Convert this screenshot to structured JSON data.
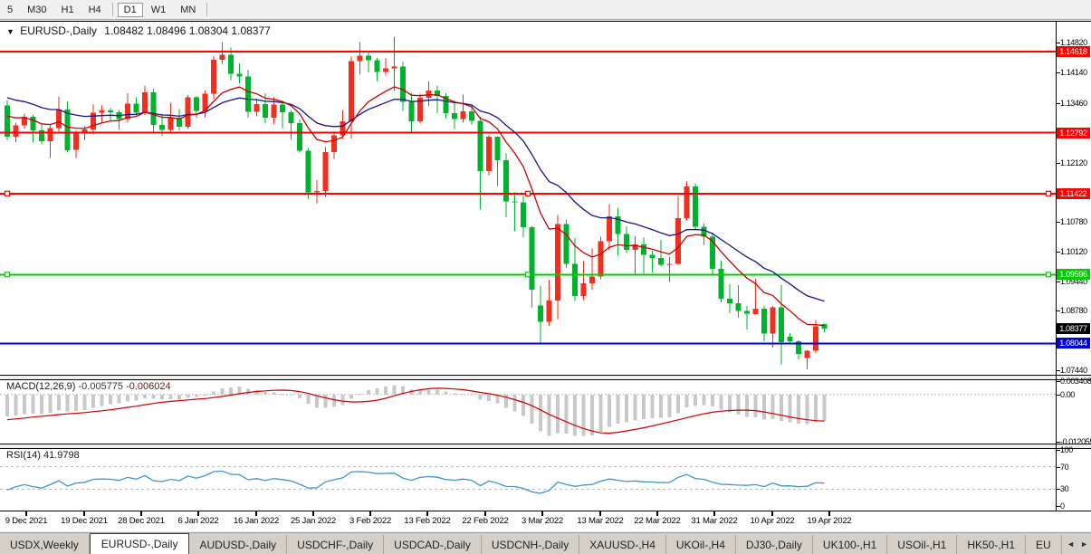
{
  "toolbar": {
    "buttons": [
      "5",
      "M30",
      "H1",
      "H4",
      "D1",
      "W1",
      "MN"
    ],
    "active": "D1"
  },
  "chart": {
    "title": {
      "marker": "▼",
      "symbol": "EURUSD-,Daily",
      "ohlc": "1.08482 1.08496 1.08304 1.08377"
    }
  },
  "chart_data": {
    "type": "candlestick",
    "symbol": "EURUSD-",
    "timeframe": "Daily",
    "last_ohlc": {
      "open": "1.08482",
      "high": "1.08496",
      "low": "1.08304",
      "close": "1.08377"
    },
    "colors": {
      "up_candle": "#f22e1e",
      "down_candle": "#00b22d",
      "hline_red": "#ff0000",
      "hline_green": "#00cc00",
      "hline_blue": "#0000dd",
      "current_tag": "#000000",
      "ma_fast": "#cc0000",
      "ma_slow": "#16168c",
      "macd_hist": "#c8c8c8",
      "macd_signal": "#cc0000",
      "rsi_line": "#3c96d2"
    },
    "price_axis": {
      "ticks": [
        "1.14820",
        "1.14140",
        "1.13460",
        "1.12120",
        "1.10780",
        "1.10120",
        "1.09440",
        "1.08780",
        "1.07440"
      ]
    },
    "hlines": [
      {
        "price": 1.14618,
        "label": "1.14618",
        "color": "#ff0000",
        "handles": false
      },
      {
        "price": 1.12792,
        "label": "1.12792",
        "color": "#ff0000",
        "handles": false
      },
      {
        "price": 1.11422,
        "label": "1.11422",
        "color": "#ff0000",
        "handles": true
      },
      {
        "price": 1.09596,
        "label": "1.09596",
        "color": "#00cc00",
        "handles": true
      },
      {
        "price": 1.08044,
        "label": "1.08044",
        "color": "#0000dd",
        "handles": false
      }
    ],
    "current_price": {
      "label": "1.08377",
      "value": 1.08377
    },
    "x_labels": [
      "9 Dec 2021",
      "19 Dec 2021",
      "28 Dec 2021",
      "6 Jan 2022",
      "16 Jan 2022",
      "25 Jan 2022",
      "3 Feb 2022",
      "13 Feb 2022",
      "22 Feb 2022",
      "3 Mar 2022",
      "13 Mar 2022",
      "22 Mar 2022",
      "31 Mar 2022",
      "10 Apr 2022",
      "19 Apr 2022"
    ],
    "x_label_pos": [
      29,
      93,
      156,
      219,
      283,
      346,
      409,
      472,
      536,
      599,
      663,
      726,
      789,
      853,
      916
    ],
    "ma_periods": [
      10,
      21
    ],
    "warmup_closes": [
      1.1665,
      1.164,
      1.1612,
      1.1626,
      1.1588,
      1.156,
      1.1573,
      1.1544,
      1.1516,
      1.153,
      1.1498,
      1.147,
      1.1483,
      1.1452,
      1.1425,
      1.144,
      1.141,
      1.1386,
      1.14,
      1.137,
      1.1352,
      1.1365,
      1.134,
      1.1322,
      1.1338,
      1.1315,
      1.13,
      1.1317,
      1.1296,
      1.131,
      1.1328,
      1.1318,
      1.1306,
      1.1335
    ],
    "candles": [
      [
        1.134,
        1.1352,
        1.1262,
        1.127
      ],
      [
        1.127,
        1.1302,
        1.1258,
        1.1296
      ],
      [
        1.1296,
        1.1322,
        1.1288,
        1.1315
      ],
      [
        1.1315,
        1.1319,
        1.1258,
        1.1284
      ],
      [
        1.1284,
        1.1297,
        1.1253,
        1.126
      ],
      [
        1.126,
        1.1296,
        1.1222,
        1.129
      ],
      [
        1.129,
        1.136,
        1.1282,
        1.1331
      ],
      [
        1.1331,
        1.1349,
        1.1235,
        1.124
      ],
      [
        1.124,
        1.1284,
        1.1222,
        1.1277
      ],
      [
        1.1277,
        1.1294,
        1.1262,
        1.1286
      ],
      [
        1.1286,
        1.1343,
        1.1275,
        1.1324
      ],
      [
        1.1324,
        1.1341,
        1.1302,
        1.1329
      ],
      [
        1.1329,
        1.1335,
        1.1305,
        1.1325
      ],
      [
        1.1325,
        1.133,
        1.1286,
        1.131
      ],
      [
        1.131,
        1.1368,
        1.1302,
        1.1345
      ],
      [
        1.1345,
        1.1359,
        1.1317,
        1.1324
      ],
      [
        1.1324,
        1.1385,
        1.1319,
        1.137
      ],
      [
        1.137,
        1.1378,
        1.1278,
        1.1297
      ],
      [
        1.1297,
        1.1322,
        1.1272,
        1.1285
      ],
      [
        1.1285,
        1.1346,
        1.128,
        1.1313
      ],
      [
        1.1313,
        1.1332,
        1.1284,
        1.1293
      ],
      [
        1.1293,
        1.1364,
        1.1288,
        1.1359
      ],
      [
        1.1359,
        1.1362,
        1.1312,
        1.1328
      ],
      [
        1.1328,
        1.1374,
        1.1313,
        1.1367
      ],
      [
        1.1367,
        1.1452,
        1.1355,
        1.1443
      ],
      [
        1.1443,
        1.1483,
        1.1434,
        1.1455
      ],
      [
        1.1455,
        1.1471,
        1.1397,
        1.1412
      ],
      [
        1.1412,
        1.1435,
        1.139,
        1.1406
      ],
      [
        1.1406,
        1.1421,
        1.1313,
        1.1326
      ],
      [
        1.1326,
        1.1356,
        1.1316,
        1.1344
      ],
      [
        1.1344,
        1.1368,
        1.13,
        1.1313
      ],
      [
        1.1313,
        1.1359,
        1.1299,
        1.1343
      ],
      [
        1.1343,
        1.1348,
        1.1289,
        1.1325
      ],
      [
        1.1325,
        1.133,
        1.1263,
        1.1301
      ],
      [
        1.1301,
        1.1309,
        1.1234,
        1.1239
      ],
      [
        1.1239,
        1.1244,
        1.113,
        1.1145
      ],
      [
        1.1145,
        1.1173,
        1.112,
        1.1148
      ],
      [
        1.1148,
        1.1247,
        1.1134,
        1.1235
      ],
      [
        1.1235,
        1.1282,
        1.122,
        1.1273
      ],
      [
        1.1273,
        1.133,
        1.1266,
        1.1305
      ],
      [
        1.1305,
        1.1451,
        1.1266,
        1.144
      ],
      [
        1.144,
        1.1483,
        1.141,
        1.1453
      ],
      [
        1.1453,
        1.1464,
        1.1415,
        1.1442
      ],
      [
        1.1442,
        1.1448,
        1.1395,
        1.1416
      ],
      [
        1.1416,
        1.1447,
        1.1408,
        1.1424
      ],
      [
        1.1424,
        1.1495,
        1.1374,
        1.1428
      ],
      [
        1.1428,
        1.1439,
        1.1328,
        1.1349
      ],
      [
        1.1349,
        1.1368,
        1.1279,
        1.1305
      ],
      [
        1.1305,
        1.1367,
        1.13,
        1.1358
      ],
      [
        1.1358,
        1.1395,
        1.1339,
        1.1374
      ],
      [
        1.1374,
        1.1385,
        1.1323,
        1.1362
      ],
      [
        1.1362,
        1.1368,
        1.1311,
        1.1323
      ],
      [
        1.1323,
        1.1352,
        1.1287,
        1.131
      ],
      [
        1.131,
        1.1365,
        1.1302,
        1.1327
      ],
      [
        1.1327,
        1.1343,
        1.1297,
        1.1306
      ],
      [
        1.1306,
        1.1315,
        1.1106,
        1.1193
      ],
      [
        1.1193,
        1.1273,
        1.1183,
        1.127
      ],
      [
        1.127,
        1.1271,
        1.1159,
        1.1217
      ],
      [
        1.1217,
        1.1233,
        1.1089,
        1.1124
      ],
      [
        1.1124,
        1.1145,
        1.1057,
        1.1122
      ],
      [
        1.1122,
        1.1138,
        1.1044,
        1.1066
      ],
      [
        1.1066,
        1.1069,
        1.0885,
        1.0926
      ],
      [
        1.089,
        1.0934,
        1.0806,
        1.0853
      ],
      [
        1.0853,
        1.0948,
        1.0844,
        1.0901
      ],
      [
        1.0901,
        1.1094,
        1.0859,
        1.1073
      ],
      [
        1.1073,
        1.1083,
        1.0975,
        1.0984
      ],
      [
        1.0984,
        1.1042,
        1.09,
        1.0911
      ],
      [
        1.0911,
        1.099,
        1.0902,
        1.094
      ],
      [
        1.094,
        1.1019,
        1.0925,
        1.0955
      ],
      [
        1.0955,
        1.1045,
        1.0949,
        1.1035
      ],
      [
        1.1035,
        1.1118,
        1.1014,
        1.1091
      ],
      [
        1.1091,
        1.1111,
        1.1002,
        1.1051
      ],
      [
        1.1051,
        1.1068,
        1.1008,
        1.1015
      ],
      [
        1.1015,
        1.1046,
        1.0961,
        1.1028
      ],
      [
        1.1028,
        1.1043,
        1.0962,
        1.1004
      ],
      [
        1.1004,
        1.1013,
        1.0964,
        1.0997
      ],
      [
        1.0997,
        1.1038,
        1.0978,
        1.0982
      ],
      [
        1.0982,
        1.0999,
        1.0943,
        1.0984
      ],
      [
        1.0984,
        1.1136,
        1.0981,
        1.1087
      ],
      [
        1.1087,
        1.117,
        1.1082,
        1.1158
      ],
      [
        1.1158,
        1.1165,
        1.1059,
        1.1067
      ],
      [
        1.1067,
        1.1075,
        1.1026,
        1.1045
      ],
      [
        1.1045,
        1.1054,
        1.0959,
        1.0972
      ],
      [
        1.0972,
        1.0991,
        1.0897,
        1.0905
      ],
      [
        1.0905,
        1.0938,
        1.0873,
        1.0895
      ],
      [
        1.0895,
        1.0936,
        1.0863,
        1.0878
      ],
      [
        1.0878,
        1.0889,
        1.0836,
        1.0871
      ],
      [
        1.0871,
        1.095,
        1.0869,
        1.0883
      ],
      [
        1.0883,
        1.0889,
        1.0809,
        1.0827
      ],
      [
        1.0827,
        1.0889,
        1.0795,
        1.0886
      ],
      [
        1.0886,
        1.0936,
        1.0757,
        1.0807
      ],
      [
        1.082,
        1.0828,
        1.0802,
        1.0809
      ],
      [
        1.0809,
        1.0812,
        1.0769,
        1.0781
      ],
      [
        1.0772,
        1.079,
        1.0746,
        1.0788
      ],
      [
        1.0788,
        1.0858,
        1.0782,
        1.0843
      ],
      [
        1.08482,
        1.08496,
        1.08304,
        1.08377
      ]
    ],
    "macd": {
      "label": "MACD(12,26,9)",
      "value_main": "-0.005775",
      "value_signal": "-0.006024",
      "axis_labels": [
        "0.003408",
        "0.00",
        "-0.012055"
      ],
      "axis_values": [
        0.003408,
        0,
        -0.012055
      ],
      "range": [
        -0.012055,
        0.003408
      ],
      "fast": 12,
      "slow": 26,
      "signal": 9
    },
    "rsi": {
      "label": "RSI(14)",
      "value": "41.9798",
      "period": 14,
      "axis_labels": [
        "100",
        "70",
        "30",
        "0"
      ],
      "axis_values": [
        100,
        70,
        30,
        0
      ],
      "levels": [
        70,
        30
      ],
      "range": [
        0,
        100
      ]
    }
  },
  "tabs": {
    "items": [
      "USDX,Weekly",
      "EURUSD-,Daily",
      "AUDUSD-,Daily",
      "USDCHF-,Daily",
      "USDCAD-,Daily",
      "USDCNH-,Daily",
      "XAUUSD-,H4",
      "UKOil-,H4",
      "DJ30-,Daily",
      "UK100-,H1",
      "USOil-,H1",
      "HK50-,H1",
      "EU"
    ],
    "active_index": 1,
    "scroll_left": "◄",
    "scroll_right": "►"
  }
}
